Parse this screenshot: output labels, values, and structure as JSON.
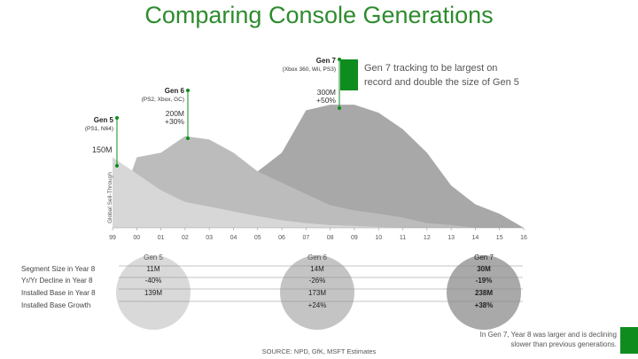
{
  "title": "Comparing Console Generations",
  "source": "SOURCE: NPD, GfK, MSFT Estimates",
  "footnote": "In Gen 7, Year 8 was larger and is declining slower than previous generations.",
  "colors": {
    "accent": "#0f8c1e",
    "gen5": "#d7d7d7",
    "gen6": "#bcbcbc",
    "gen7": "#a8a8a8"
  },
  "chart_data": {
    "type": "area",
    "ylabel": "Global Sell-Through",
    "x": [
      "99",
      "00",
      "01",
      "02",
      "03",
      "04",
      "05",
      "06",
      "07",
      "08",
      "09",
      "10",
      "11",
      "12",
      "13",
      "14",
      "15",
      "16"
    ],
    "series": [
      {
        "name": "Gen 5",
        "values": [
          150,
          115,
          80,
          55,
          45,
          35,
          25,
          16,
          10,
          6,
          4,
          2,
          0,
          0,
          0,
          0,
          0,
          0
        ]
      },
      {
        "name": "Gen 6",
        "values": [
          0,
          150,
          160,
          195,
          188,
          160,
          120,
          96,
          72,
          48,
          37,
          30,
          22,
          10,
          6,
          0,
          0,
          0
        ]
      },
      {
        "name": "Gen 7",
        "values": [
          0,
          0,
          0,
          0,
          0,
          0,
          120,
          160,
          250,
          262,
          262,
          245,
          210,
          160,
          90,
          50,
          30,
          0
        ]
      }
    ],
    "y_tick": "150M",
    "callouts": [
      {
        "gen": "Gen 5",
        "consoles": "(PS1, N64)",
        "x": "99"
      },
      {
        "gen": "Gen 6",
        "consoles": "(PS2, Xbox, GC)",
        "value": "200M",
        "growth": "+30%",
        "x": "02"
      },
      {
        "gen": "Gen 7",
        "consoles": "(Xbox 360, Wii, PS3)",
        "value": "300M",
        "growth": "+50%",
        "x": "08"
      }
    ],
    "highlight": "Gen 7 tracking to be largest on record and double the size of Gen 5"
  },
  "table": {
    "row_labels": [
      "Segment Size in Year 8",
      "Yr/Yr Decline in Year 8",
      "Installed Base in Year 8",
      "Installed Base Growth"
    ],
    "columns": [
      {
        "header": "Gen 5",
        "values": [
          "11M",
          "-40%",
          "139M",
          ""
        ]
      },
      {
        "header": "Gen 6",
        "values": [
          "14M",
          "-26%",
          "173M",
          "+24%"
        ]
      },
      {
        "header": "Gen 7",
        "values": [
          "30M",
          "-19%",
          "238M",
          "+38%"
        ]
      }
    ]
  }
}
